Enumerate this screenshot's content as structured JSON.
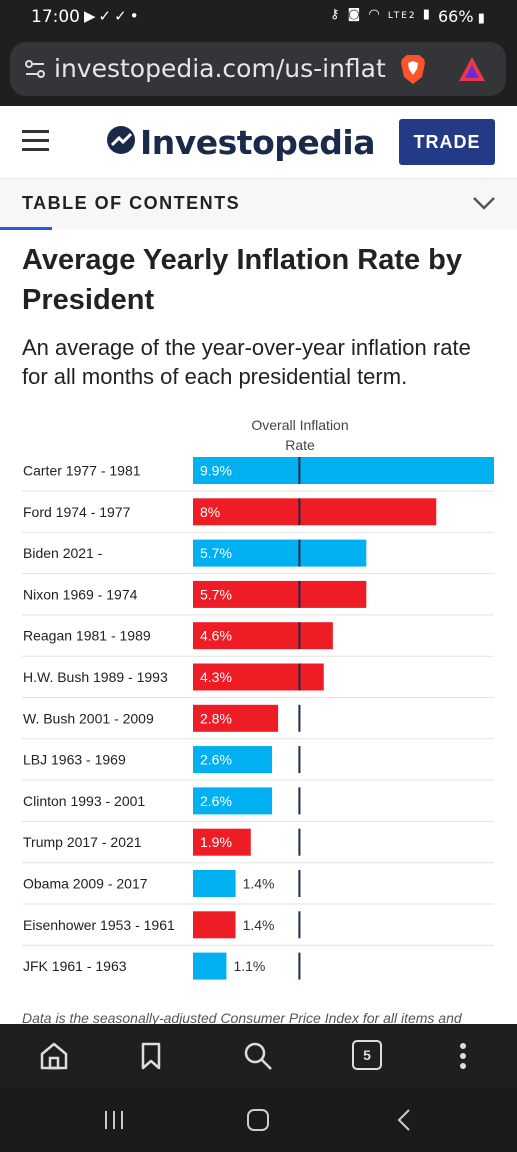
{
  "status_bar": {
    "time": "17:00",
    "battery": "66%",
    "icons": [
      "youtube-icon",
      "download-done-icon",
      "download-done-icon",
      "dot-icon",
      "key-icon",
      "android-icon",
      "wifi-icon",
      "volte-lte2-icon",
      "signal-icon",
      "battery-icon"
    ]
  },
  "browser": {
    "url": "investopedia.com/us-inflat",
    "tab_count": "5"
  },
  "header": {
    "logo_text": "Investopedia",
    "trade_label": "TRADE"
  },
  "toc": {
    "label": "TABLE OF CONTENTS"
  },
  "article": {
    "title": "Average Yearly Inflation Rate by President",
    "subtitle": "An average of the year-over-year inflation rate for all months of each presidential term."
  },
  "colors": {
    "democrat": "#00b0f0",
    "republican": "#ee1c25",
    "brand_navy": "#233a87",
    "toc_accent": "#2a5ad6"
  },
  "chart_data": {
    "type": "bar",
    "orientation": "horizontal",
    "column_header_line1": "Overall Inflation",
    "column_header_line2": "Rate",
    "categories": [
      "Carter 1977 - 1981",
      "Ford 1974 - 1977",
      "Biden 2021 -",
      "Nixon 1969 - 1974",
      "Reagan 1981 - 1989",
      "H.W. Bush 1989 - 1993",
      "W. Bush 2001 - 2009",
      "LBJ 1963 - 1969",
      "Clinton 1993 - 2001",
      "Trump 2017 - 2021",
      "Obama 2009 - 2017",
      "Eisenhower 1953 - 1961",
      "JFK 1961 - 1963"
    ],
    "values": [
      9.9,
      8,
      5.7,
      5.7,
      4.6,
      4.3,
      2.8,
      2.6,
      2.6,
      1.9,
      1.4,
      1.4,
      1.1
    ],
    "labels": [
      "9.9%",
      "8%",
      "5.7%",
      "5.7%",
      "4.6%",
      "4.3%",
      "2.8%",
      "2.6%",
      "2.6%",
      "1.9%",
      "1.4%",
      "1.4%",
      "1.1%"
    ],
    "party": [
      "D",
      "R",
      "D",
      "R",
      "R",
      "R",
      "R",
      "D",
      "D",
      "R",
      "D",
      "R",
      "D"
    ],
    "reference_line_value": 3.5,
    "xlim": [
      0,
      9.9
    ],
    "grid": false
  },
  "footnote": "Data is the seasonally-adjusted Consumer Price Index for all items and"
}
